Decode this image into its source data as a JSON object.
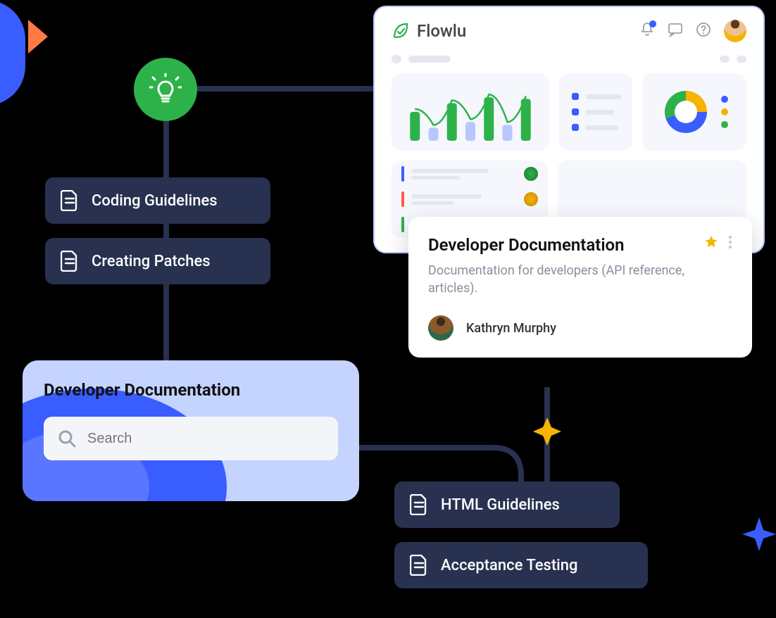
{
  "palette": {
    "navy": "#28314f",
    "green": "#2db24a",
    "blue": "#3a5dff",
    "blue_light": "#b9c6ff",
    "panel_bg": "#c5d3ff",
    "orange": "#ff7a45",
    "amber": "#f5b400",
    "gray_txt": "#8a8f9c",
    "card_bg": "#f5f7fc"
  },
  "brand": {
    "name": "Flowlu"
  },
  "header_icons": {
    "bell": "bell-icon",
    "bell_dot_color": "#3a5dff",
    "chat": "chat-icon",
    "help": "help-icon"
  },
  "chips": {
    "coding": {
      "label": "Coding Guidelines"
    },
    "patches": {
      "label": "Creating Patches"
    },
    "html": {
      "label": "HTML Guidelines"
    },
    "accept": {
      "label": "Acceptance Testing"
    }
  },
  "search_panel": {
    "title": "Developer Documentation",
    "placeholder": "Search"
  },
  "doc_card": {
    "title": "Developer Documentation",
    "subtitle": "Documentation for developers (API reference, articles).",
    "user_name": "Kathryn Murphy",
    "star_color": "#f5b400"
  },
  "dashboard": {
    "chart": {
      "type": "bar+line",
      "bar_values": [
        40,
        18,
        52,
        26,
        60,
        22,
        58
      ],
      "bar_colors": [
        "#2db24a",
        "#b9c6ff",
        "#2db24a",
        "#b9c6ff",
        "#2db24a",
        "#b9c6ff",
        "#2db24a"
      ],
      "line_color": "#2db24a",
      "ylim": [
        0,
        70
      ]
    },
    "list_bullets": {
      "colors": [
        "#3a5dff",
        "#3a5dff",
        "#3a5dff"
      ]
    },
    "donut": {
      "type": "pie",
      "slices": [
        {
          "color": "#f5b400",
          "pct": 25
        },
        {
          "color": "#3a5dff",
          "pct": 45
        },
        {
          "color": "#2db24a",
          "pct": 30
        }
      ],
      "legend_colors": [
        "#3a5dff",
        "#f5b400",
        "#2db24a"
      ]
    },
    "tasks": {
      "rows": [
        {
          "bar_color": "#3a5dff",
          "avatar_bg": "#2db24a"
        },
        {
          "bar_color": "#ff5a45",
          "avatar_bg": "#f5b400"
        },
        {
          "bar_color": "#2db24a",
          "avatar_bg": null
        }
      ]
    }
  }
}
